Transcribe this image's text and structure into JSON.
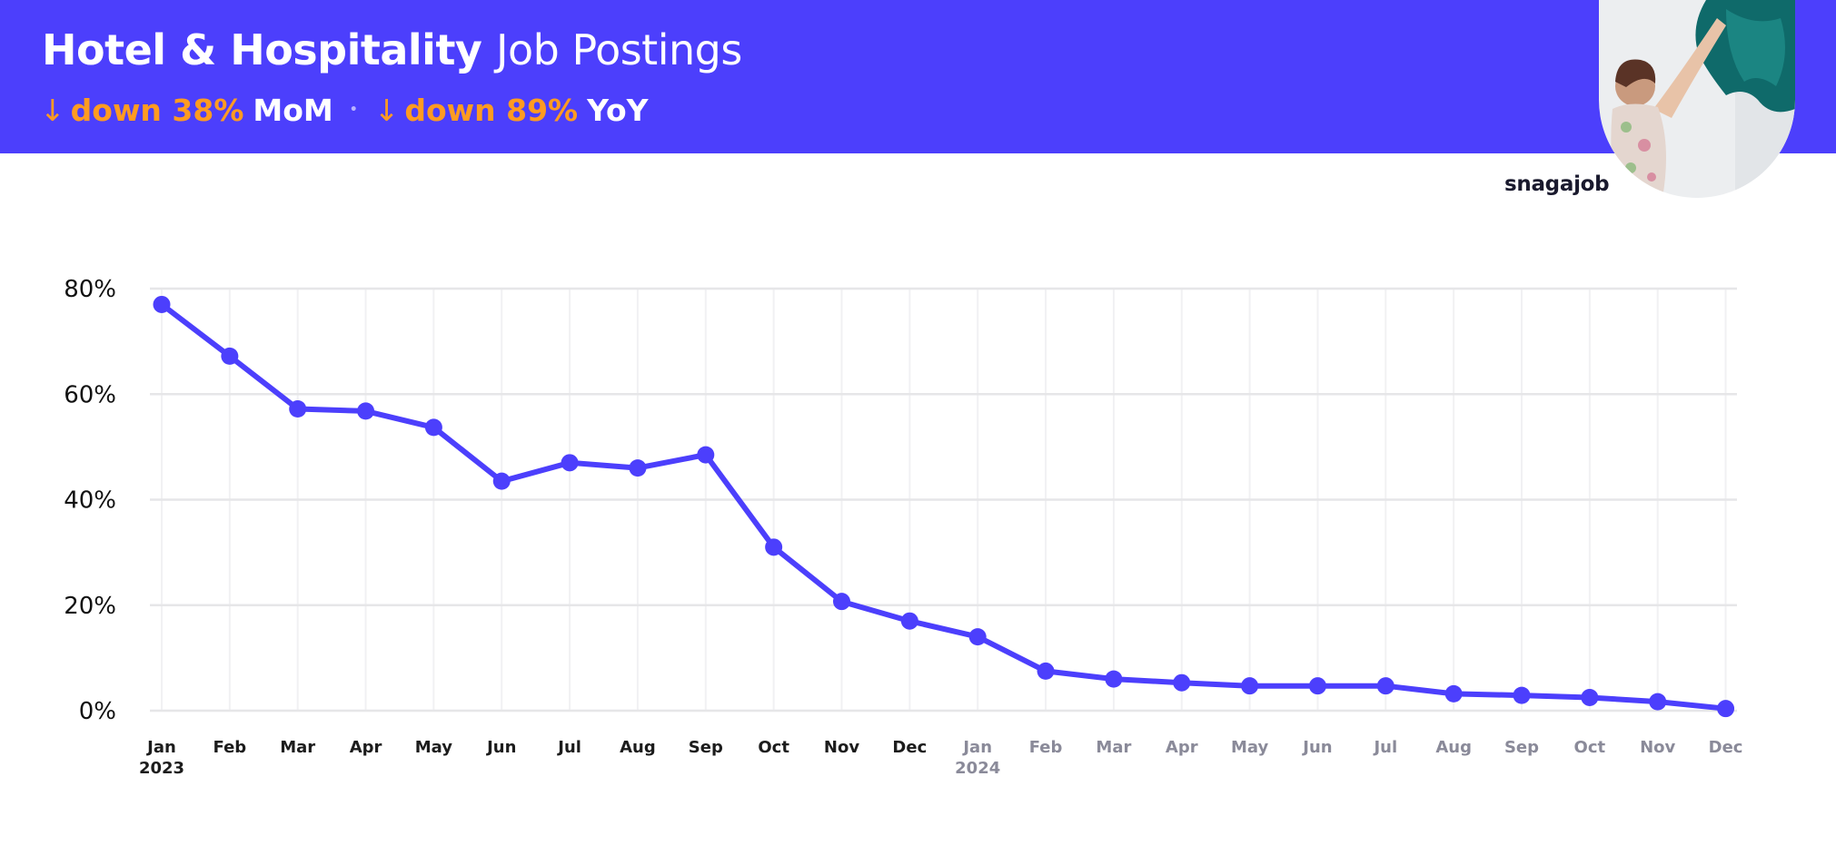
{
  "header": {
    "title_bold": "Hotel & Hospitality",
    "title_light": "Job Postings",
    "mom": {
      "arrow": "↓",
      "text": "down 38%",
      "period": "MoM"
    },
    "separator": "•",
    "yoy": {
      "arrow": "↓",
      "text": "down 89%",
      "period": "YoY"
    },
    "background_color": "#4c3ffc",
    "accent_color": "#ff9b21"
  },
  "brand": {
    "name": "snagajob"
  },
  "photo": {
    "icon": "person-hanging-laundry-photo"
  },
  "chart_data": {
    "type": "line",
    "title": "",
    "xlabel": "",
    "ylabel": "",
    "ylim": [
      0,
      80
    ],
    "y_ticks": [
      "0%",
      "20%",
      "40%",
      "60%",
      "80%"
    ],
    "y_tick_values": [
      0,
      20,
      40,
      60,
      80
    ],
    "grid": true,
    "line_color": "#4c3ffc",
    "categories": [
      "Jan",
      "Feb",
      "Mar",
      "Apr",
      "May",
      "Jun",
      "Jul",
      "Aug",
      "Sep",
      "Oct",
      "Nov",
      "Dec",
      "Jan",
      "Feb",
      "Mar",
      "Apr",
      "May",
      "Jun",
      "Jul",
      "Aug",
      "Sep",
      "Oct",
      "Nov",
      "Dec"
    ],
    "year_labels": [
      {
        "index": 0,
        "label": "2023"
      },
      {
        "index": 12,
        "label": "2024"
      }
    ],
    "series": [
      {
        "values": [
          77,
          67.2,
          57.2,
          56.8,
          53.7,
          43.5,
          47,
          46,
          48.5,
          31,
          20.7,
          17,
          14,
          7.5,
          6,
          5.3,
          4.7,
          4.7,
          4.7,
          3.2,
          2.9,
          2.5,
          1.7,
          0.4
        ]
      }
    ]
  }
}
